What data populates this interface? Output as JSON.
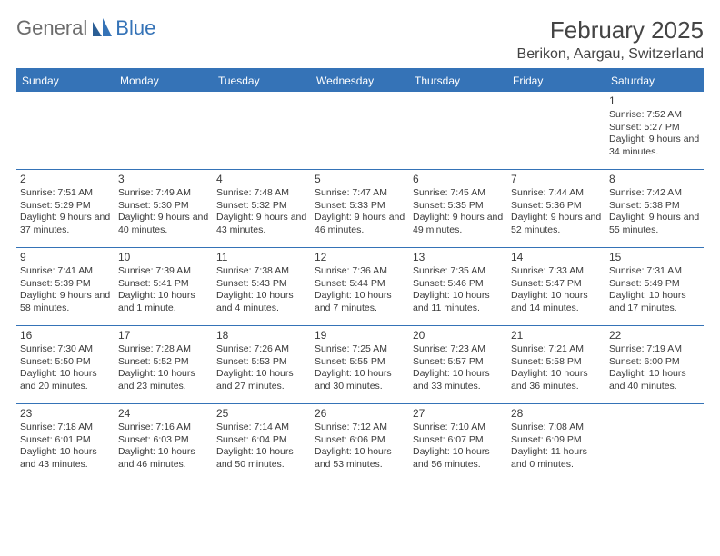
{
  "brand": {
    "part1": "General",
    "part2": "Blue"
  },
  "title": {
    "month": "February 2025",
    "location": "Berikon, Aargau, Switzerland"
  },
  "colors": {
    "accent": "#3573b7",
    "text": "#3a3a3a",
    "background": "#ffffff",
    "logo_gray": "#6c6c6c"
  },
  "layout": {
    "columns": 7,
    "rows": 5,
    "first_day_column": 6
  },
  "weekdays": [
    "Sunday",
    "Monday",
    "Tuesday",
    "Wednesday",
    "Thursday",
    "Friday",
    "Saturday"
  ],
  "days": [
    {
      "n": 1,
      "sunrise": "Sunrise: 7:52 AM",
      "sunset": "Sunset: 5:27 PM",
      "daylight": "Daylight: 9 hours and 34 minutes."
    },
    {
      "n": 2,
      "sunrise": "Sunrise: 7:51 AM",
      "sunset": "Sunset: 5:29 PM",
      "daylight": "Daylight: 9 hours and 37 minutes."
    },
    {
      "n": 3,
      "sunrise": "Sunrise: 7:49 AM",
      "sunset": "Sunset: 5:30 PM",
      "daylight": "Daylight: 9 hours and 40 minutes."
    },
    {
      "n": 4,
      "sunrise": "Sunrise: 7:48 AM",
      "sunset": "Sunset: 5:32 PM",
      "daylight": "Daylight: 9 hours and 43 minutes."
    },
    {
      "n": 5,
      "sunrise": "Sunrise: 7:47 AM",
      "sunset": "Sunset: 5:33 PM",
      "daylight": "Daylight: 9 hours and 46 minutes."
    },
    {
      "n": 6,
      "sunrise": "Sunrise: 7:45 AM",
      "sunset": "Sunset: 5:35 PM",
      "daylight": "Daylight: 9 hours and 49 minutes."
    },
    {
      "n": 7,
      "sunrise": "Sunrise: 7:44 AM",
      "sunset": "Sunset: 5:36 PM",
      "daylight": "Daylight: 9 hours and 52 minutes."
    },
    {
      "n": 8,
      "sunrise": "Sunrise: 7:42 AM",
      "sunset": "Sunset: 5:38 PM",
      "daylight": "Daylight: 9 hours and 55 minutes."
    },
    {
      "n": 9,
      "sunrise": "Sunrise: 7:41 AM",
      "sunset": "Sunset: 5:39 PM",
      "daylight": "Daylight: 9 hours and 58 minutes."
    },
    {
      "n": 10,
      "sunrise": "Sunrise: 7:39 AM",
      "sunset": "Sunset: 5:41 PM",
      "daylight": "Daylight: 10 hours and 1 minute."
    },
    {
      "n": 11,
      "sunrise": "Sunrise: 7:38 AM",
      "sunset": "Sunset: 5:43 PM",
      "daylight": "Daylight: 10 hours and 4 minutes."
    },
    {
      "n": 12,
      "sunrise": "Sunrise: 7:36 AM",
      "sunset": "Sunset: 5:44 PM",
      "daylight": "Daylight: 10 hours and 7 minutes."
    },
    {
      "n": 13,
      "sunrise": "Sunrise: 7:35 AM",
      "sunset": "Sunset: 5:46 PM",
      "daylight": "Daylight: 10 hours and 11 minutes."
    },
    {
      "n": 14,
      "sunrise": "Sunrise: 7:33 AM",
      "sunset": "Sunset: 5:47 PM",
      "daylight": "Daylight: 10 hours and 14 minutes."
    },
    {
      "n": 15,
      "sunrise": "Sunrise: 7:31 AM",
      "sunset": "Sunset: 5:49 PM",
      "daylight": "Daylight: 10 hours and 17 minutes."
    },
    {
      "n": 16,
      "sunrise": "Sunrise: 7:30 AM",
      "sunset": "Sunset: 5:50 PM",
      "daylight": "Daylight: 10 hours and 20 minutes."
    },
    {
      "n": 17,
      "sunrise": "Sunrise: 7:28 AM",
      "sunset": "Sunset: 5:52 PM",
      "daylight": "Daylight: 10 hours and 23 minutes."
    },
    {
      "n": 18,
      "sunrise": "Sunrise: 7:26 AM",
      "sunset": "Sunset: 5:53 PM",
      "daylight": "Daylight: 10 hours and 27 minutes."
    },
    {
      "n": 19,
      "sunrise": "Sunrise: 7:25 AM",
      "sunset": "Sunset: 5:55 PM",
      "daylight": "Daylight: 10 hours and 30 minutes."
    },
    {
      "n": 20,
      "sunrise": "Sunrise: 7:23 AM",
      "sunset": "Sunset: 5:57 PM",
      "daylight": "Daylight: 10 hours and 33 minutes."
    },
    {
      "n": 21,
      "sunrise": "Sunrise: 7:21 AM",
      "sunset": "Sunset: 5:58 PM",
      "daylight": "Daylight: 10 hours and 36 minutes."
    },
    {
      "n": 22,
      "sunrise": "Sunrise: 7:19 AM",
      "sunset": "Sunset: 6:00 PM",
      "daylight": "Daylight: 10 hours and 40 minutes."
    },
    {
      "n": 23,
      "sunrise": "Sunrise: 7:18 AM",
      "sunset": "Sunset: 6:01 PM",
      "daylight": "Daylight: 10 hours and 43 minutes."
    },
    {
      "n": 24,
      "sunrise": "Sunrise: 7:16 AM",
      "sunset": "Sunset: 6:03 PM",
      "daylight": "Daylight: 10 hours and 46 minutes."
    },
    {
      "n": 25,
      "sunrise": "Sunrise: 7:14 AM",
      "sunset": "Sunset: 6:04 PM",
      "daylight": "Daylight: 10 hours and 50 minutes."
    },
    {
      "n": 26,
      "sunrise": "Sunrise: 7:12 AM",
      "sunset": "Sunset: 6:06 PM",
      "daylight": "Daylight: 10 hours and 53 minutes."
    },
    {
      "n": 27,
      "sunrise": "Sunrise: 7:10 AM",
      "sunset": "Sunset: 6:07 PM",
      "daylight": "Daylight: 10 hours and 56 minutes."
    },
    {
      "n": 28,
      "sunrise": "Sunrise: 7:08 AM",
      "sunset": "Sunset: 6:09 PM",
      "daylight": "Daylight: 11 hours and 0 minutes."
    }
  ]
}
